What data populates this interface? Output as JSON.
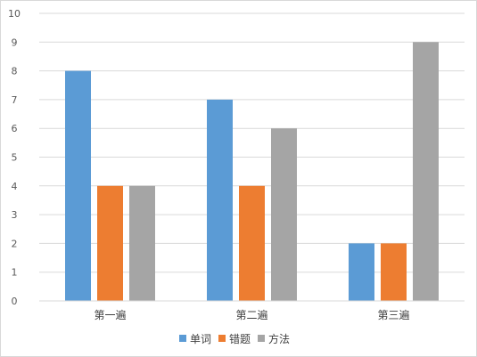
{
  "chart_data": {
    "type": "bar",
    "categories": [
      "第一遍",
      "第二遍",
      "第三遍"
    ],
    "series": [
      {
        "name": "单词",
        "color": "#5B9BD5",
        "values": [
          8,
          7,
          2
        ]
      },
      {
        "name": "错题",
        "color": "#ED7D31",
        "values": [
          4,
          4,
          2
        ]
      },
      {
        "name": "方法",
        "color": "#A5A5A5",
        "values": [
          4,
          6,
          9
        ]
      }
    ],
    "yticks": [
      "0",
      "1",
      "2",
      "3",
      "4",
      "5",
      "6",
      "7",
      "8",
      "9",
      "10"
    ],
    "ylim": [
      0,
      10
    ],
    "grid": true,
    "legend_position": "bottom"
  }
}
